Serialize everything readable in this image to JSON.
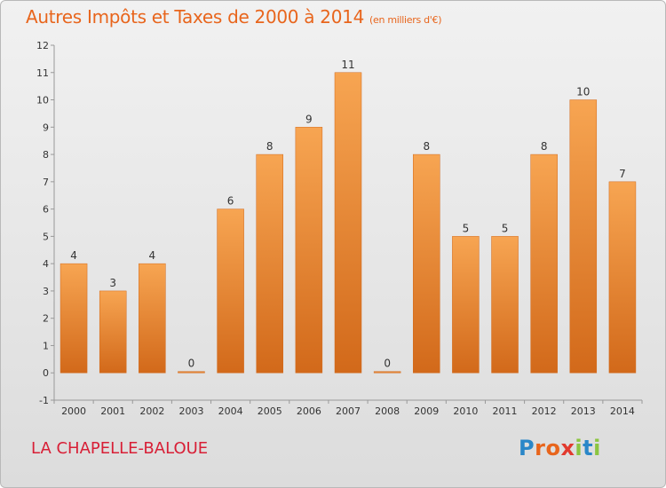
{
  "chart_data": {
    "type": "bar",
    "title": "Autres Impôts et Taxes de 2000 à 2014",
    "subtitle": "(en milliers d'€)",
    "categories": [
      "2000",
      "2001",
      "2002",
      "2003",
      "2004",
      "2005",
      "2006",
      "2007",
      "2008",
      "2009",
      "2010",
      "2011",
      "2012",
      "2013",
      "2014"
    ],
    "values": [
      4,
      3,
      4,
      0,
      6,
      8,
      9,
      11,
      0,
      8,
      5,
      5,
      8,
      10,
      7
    ],
    "data_labels": [
      "4",
      "3",
      "4",
      "0",
      "6",
      "8",
      "9",
      "11",
      "0",
      "8",
      "5",
      "5",
      "8",
      "10",
      "7"
    ],
    "ylim": [
      -1,
      12
    ],
    "yticks": [
      "-1",
      "0",
      "1",
      "2",
      "3",
      "4",
      "5",
      "6",
      "7",
      "8",
      "9",
      "10",
      "11",
      "12"
    ],
    "xlabel": "",
    "ylabel": "",
    "grid": false,
    "colors": {
      "bar_light": "#f7a552",
      "bar_dark": "#d2691a",
      "title": "#e8651c"
    }
  },
  "footer": {
    "commune": "LA CHAPELLE-BALOUE",
    "logo_letters": [
      "P",
      "r",
      "o",
      "x",
      "i",
      "t",
      "i"
    ],
    "logo_colors": [
      "#2a87c8",
      "#e8651c",
      "#e8651c",
      "#e23a2e",
      "#8bc541",
      "#2a87c8",
      "#8bc541"
    ]
  }
}
